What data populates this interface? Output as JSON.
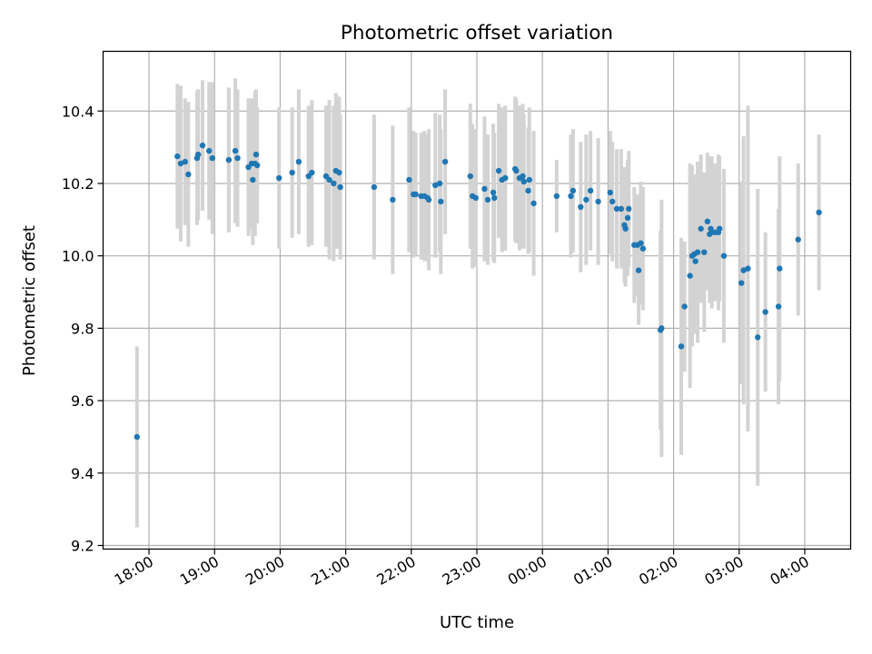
{
  "chart_data": {
    "type": "scatter",
    "title": "Photometric offset variation",
    "xlabel": "UTC time",
    "ylabel": "Photometric offset",
    "x_tick_labels": [
      "18:00",
      "19:00",
      "20:00",
      "21:00",
      "22:00",
      "23:00",
      "00:00",
      "01:00",
      "02:00",
      "03:00",
      "04:00"
    ],
    "y_tick_labels": [
      "9.2",
      "9.4",
      "9.6",
      "9.8",
      "10.0",
      "10.2",
      "10.4"
    ],
    "y_ticks": [
      9.2,
      9.4,
      9.6,
      9.8,
      10.0,
      10.2,
      10.4
    ],
    "xlim_hours_utc": [
      17.3,
      28.7
    ],
    "ylim": [
      9.19,
      10.565
    ],
    "grid": true,
    "colors": {
      "points": "#1f77b4",
      "errorbars": "#d3d3d3",
      "grid": "#b0b0b0"
    },
    "points": [
      {
        "t": "17:49",
        "y": 9.5,
        "err": 0.25
      },
      {
        "t": "18:26",
        "y": 10.275,
        "err": 0.2
      },
      {
        "t": "18:29",
        "y": 10.255,
        "err": 0.215
      },
      {
        "t": "18:33",
        "y": 10.26,
        "err": 0.175
      },
      {
        "t": "18:36",
        "y": 10.225,
        "err": 0.2
      },
      {
        "t": "18:44",
        "y": 10.27,
        "err": 0.185
      },
      {
        "t": "18:45",
        "y": 10.28,
        "err": 0.18
      },
      {
        "t": "18:49",
        "y": 10.305,
        "err": 0.18
      },
      {
        "t": "18:55",
        "y": 10.29,
        "err": 0.19
      },
      {
        "t": "18:58",
        "y": 10.27,
        "err": 0.21
      },
      {
        "t": "19:13",
        "y": 10.265,
        "err": 0.2
      },
      {
        "t": "19:19",
        "y": 10.29,
        "err": 0.2
      },
      {
        "t": "19:21",
        "y": 10.27,
        "err": 0.19
      },
      {
        "t": "19:31",
        "y": 10.245,
        "err": 0.19
      },
      {
        "t": "19:34",
        "y": 10.255,
        "err": 0.18
      },
      {
        "t": "19:35",
        "y": 10.21,
        "err": 0.18
      },
      {
        "t": "19:37",
        "y": 10.255,
        "err": 0.2
      },
      {
        "t": "19:38",
        "y": 10.28,
        "err": 0.18
      },
      {
        "t": "19:39",
        "y": 10.25,
        "err": 0.16
      },
      {
        "t": "19:59",
        "y": 10.215,
        "err": 0.195
      },
      {
        "t": "20:11",
        "y": 10.23,
        "err": 0.18
      },
      {
        "t": "20:17",
        "y": 10.26,
        "err": 0.2
      },
      {
        "t": "20:26",
        "y": 10.22,
        "err": 0.195
      },
      {
        "t": "20:29",
        "y": 10.23,
        "err": 0.2
      },
      {
        "t": "20:42",
        "y": 10.22,
        "err": 0.195
      },
      {
        "t": "20:45",
        "y": 10.21,
        "err": 0.22
      },
      {
        "t": "20:49",
        "y": 10.2,
        "err": 0.215
      },
      {
        "t": "20:51",
        "y": 10.235,
        "err": 0.215
      },
      {
        "t": "20:54",
        "y": 10.23,
        "err": 0.21
      },
      {
        "t": "20:55",
        "y": 10.19,
        "err": 0.2
      },
      {
        "t": "21:26",
        "y": 10.19,
        "err": 0.2
      },
      {
        "t": "21:43",
        "y": 10.155,
        "err": 0.205
      },
      {
        "t": "21:58",
        "y": 10.21,
        "err": 0.2
      },
      {
        "t": "22:02",
        "y": 10.17,
        "err": 0.175
      },
      {
        "t": "22:04",
        "y": 10.17,
        "err": 0.17
      },
      {
        "t": "22:09",
        "y": 10.165,
        "err": 0.175
      },
      {
        "t": "22:12",
        "y": 10.165,
        "err": 0.18
      },
      {
        "t": "22:15",
        "y": 10.16,
        "err": 0.175
      },
      {
        "t": "22:16",
        "y": 10.155,
        "err": 0.195
      },
      {
        "t": "22:22",
        "y": 10.195,
        "err": 0.2
      },
      {
        "t": "22:26",
        "y": 10.2,
        "err": 0.19
      },
      {
        "t": "22:27",
        "y": 10.15,
        "err": 0.2
      },
      {
        "t": "22:31",
        "y": 10.26,
        "err": 0.2
      },
      {
        "t": "22:54",
        "y": 10.22,
        "err": 0.2
      },
      {
        "t": "22:56",
        "y": 10.165,
        "err": 0.2
      },
      {
        "t": "22:59",
        "y": 10.16,
        "err": 0.19
      },
      {
        "t": "23:07",
        "y": 10.185,
        "err": 0.2
      },
      {
        "t": "23:10",
        "y": 10.155,
        "err": 0.18
      },
      {
        "t": "23:15",
        "y": 10.175,
        "err": 0.19
      },
      {
        "t": "23:16",
        "y": 10.16,
        "err": 0.18
      },
      {
        "t": "23:20",
        "y": 10.235,
        "err": 0.185
      },
      {
        "t": "23:23",
        "y": 10.21,
        "err": 0.2
      },
      {
        "t": "23:26",
        "y": 10.215,
        "err": 0.2
      },
      {
        "t": "23:35",
        "y": 10.24,
        "err": 0.2
      },
      {
        "t": "23:36",
        "y": 10.235,
        "err": 0.2
      },
      {
        "t": "23:39",
        "y": 10.215,
        "err": 0.2
      },
      {
        "t": "23:42",
        "y": 10.22,
        "err": 0.2
      },
      {
        "t": "23:43",
        "y": 10.205,
        "err": 0.185
      },
      {
        "t": "23:47",
        "y": 10.18,
        "err": 0.175
      },
      {
        "t": "23:48",
        "y": 10.21,
        "err": 0.2
      },
      {
        "t": "23:52",
        "y": 10.145,
        "err": 0.2
      },
      {
        "t": "00:13",
        "y": 10.165,
        "err": 0.1
      },
      {
        "t": "00:26",
        "y": 10.165,
        "err": 0.17
      },
      {
        "t": "00:28",
        "y": 10.18,
        "err": 0.17
      },
      {
        "t": "00:35",
        "y": 10.135,
        "err": 0.18
      },
      {
        "t": "00:40",
        "y": 10.155,
        "err": 0.18
      },
      {
        "t": "00:44",
        "y": 10.18,
        "err": 0.165
      },
      {
        "t": "00:51",
        "y": 10.15,
        "err": 0.175
      },
      {
        "t": "01:02",
        "y": 10.175,
        "err": 0.17
      },
      {
        "t": "01:04",
        "y": 10.15,
        "err": 0.165
      },
      {
        "t": "01:08",
        "y": 10.13,
        "err": 0.165
      },
      {
        "t": "01:12",
        "y": 10.13,
        "err": 0.165
      },
      {
        "t": "01:15",
        "y": 10.085,
        "err": 0.16
      },
      {
        "t": "01:16",
        "y": 10.075,
        "err": 0.16
      },
      {
        "t": "01:18",
        "y": 10.105,
        "err": 0.16
      },
      {
        "t": "01:19",
        "y": 10.13,
        "err": 0.16
      },
      {
        "t": "01:24",
        "y": 10.03,
        "err": 0.16
      },
      {
        "t": "01:27",
        "y": 10.03,
        "err": 0.14
      },
      {
        "t": "01:28",
        "y": 9.96,
        "err": 0.15
      },
      {
        "t": "01:30",
        "y": 10.035,
        "err": 0.17
      },
      {
        "t": "01:32",
        "y": 10.02,
        "err": 0.17
      },
      {
        "t": "01:48",
        "y": 9.795,
        "err": 0.275
      },
      {
        "t": "01:49",
        "y": 9.8,
        "err": 0.355
      },
      {
        "t": "02:07",
        "y": 9.75,
        "err": 0.3
      },
      {
        "t": "02:10",
        "y": 9.86,
        "err": 0.18
      },
      {
        "t": "02:15",
        "y": 9.945,
        "err": 0.31
      },
      {
        "t": "02:17",
        "y": 10.0,
        "err": 0.25
      },
      {
        "t": "02:19",
        "y": 10.005,
        "err": 0.22
      },
      {
        "t": "02:20",
        "y": 9.985,
        "err": 0.2
      },
      {
        "t": "02:22",
        "y": 10.01,
        "err": 0.25
      },
      {
        "t": "02:25",
        "y": 10.075,
        "err": 0.205
      },
      {
        "t": "02:28",
        "y": 10.01,
        "err": 0.22
      },
      {
        "t": "02:31",
        "y": 10.095,
        "err": 0.19
      },
      {
        "t": "02:33",
        "y": 10.06,
        "err": 0.19
      },
      {
        "t": "02:34",
        "y": 10.075,
        "err": 0.2
      },
      {
        "t": "02:35",
        "y": 10.065,
        "err": 0.21
      },
      {
        "t": "02:38",
        "y": 10.065,
        "err": 0.19
      },
      {
        "t": "02:41",
        "y": 10.065,
        "err": 0.215
      },
      {
        "t": "02:42",
        "y": 10.075,
        "err": 0.2
      },
      {
        "t": "02:46",
        "y": 10.0,
        "err": 0.24
      },
      {
        "t": "03:02",
        "y": 9.925,
        "err": 0.28
      },
      {
        "t": "03:04",
        "y": 9.96,
        "err": 0.37
      },
      {
        "t": "03:08",
        "y": 9.965,
        "err": 0.45
      },
      {
        "t": "03:17",
        "y": 9.775,
        "err": 0.41
      },
      {
        "t": "03:24",
        "y": 9.845,
        "err": 0.22
      },
      {
        "t": "03:36",
        "y": 9.86,
        "err": 0.27
      },
      {
        "t": "03:37",
        "y": 9.965,
        "err": 0.31
      },
      {
        "t": "03:54",
        "y": 10.045,
        "err": 0.21
      },
      {
        "t": "04:13",
        "y": 10.12,
        "err": 0.215
      }
    ]
  }
}
